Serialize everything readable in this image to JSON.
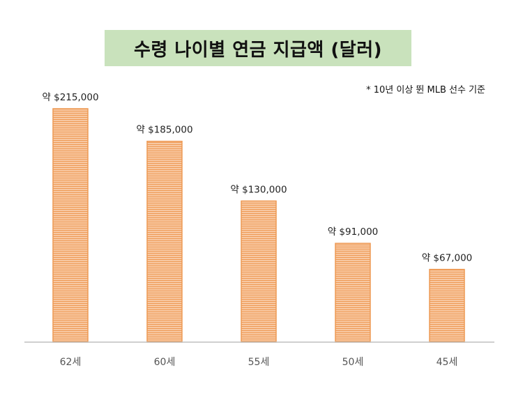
{
  "chart_data": {
    "type": "bar",
    "title": "수령 나이별 연금 지급액 (달러)",
    "annotation": "* 10년 이상 뛴 MLB 선수 기준",
    "categories": [
      "62세",
      "60세",
      "55세",
      "50세",
      "45세"
    ],
    "values": [
      215000,
      185000,
      130000,
      91000,
      67000
    ],
    "data_labels": [
      "약 $215,000",
      "약 $185,000",
      "약 $130,000",
      "약 $91,000",
      "약 $67,000"
    ],
    "ylim": [
      0,
      215000
    ],
    "grid": false,
    "legend": "none",
    "colors": {
      "bar_fill": "#f8c8a2",
      "bar_stripe": "#ee9a55",
      "title_bg": "#c9e2bc",
      "axis": "#bfbfbf"
    }
  }
}
